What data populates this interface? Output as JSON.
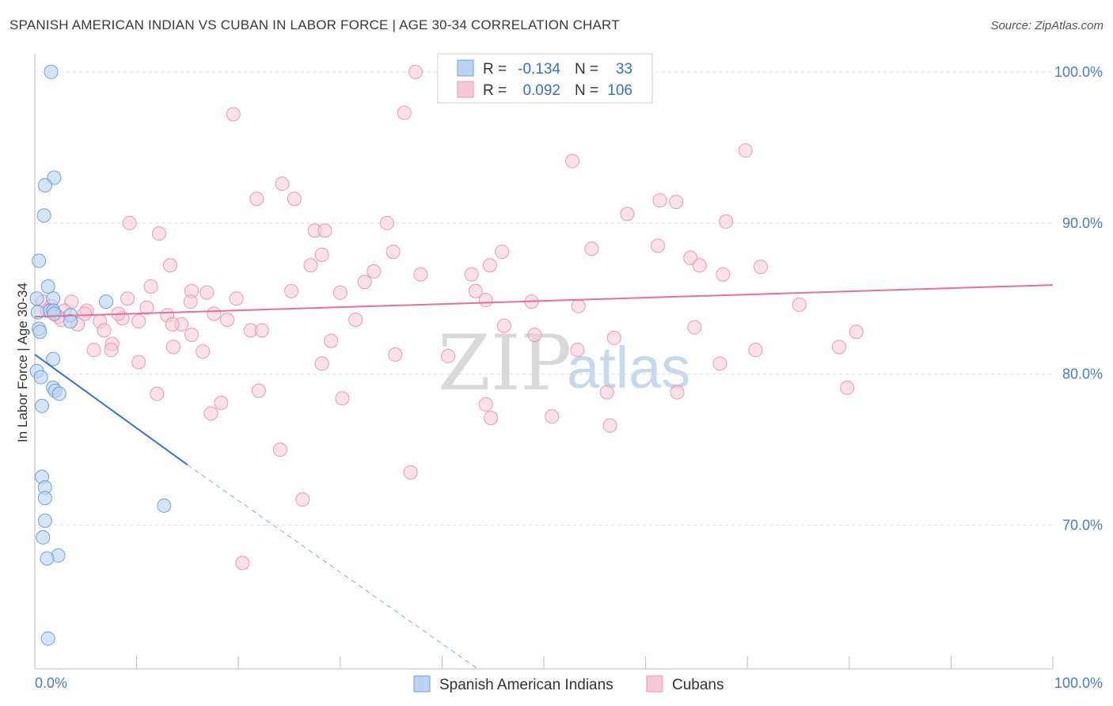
{
  "title": "SPANISH AMERICAN INDIAN VS CUBAN IN LABOR FORCE | AGE 30-34 CORRELATION CHART",
  "source": "Source: ZipAtlas.com",
  "watermark": {
    "zip": "ZIP",
    "atlas": "atlas"
  },
  "colors": {
    "blue_fill": "#b9d3f3",
    "blue_stroke": "#6fa0df",
    "blue_line": "#2f74d6",
    "pink_fill": "#f9c8d6",
    "pink_stroke": "#e898b0",
    "pink_line": "#e4709a",
    "tick_text": "#4a7cc4",
    "grid": "#dddddd"
  },
  "legend": {
    "rows": [
      {
        "r_label": "R =",
        "r_value": "-0.134",
        "n_label": "N =",
        "n_value": "33"
      },
      {
        "r_label": "R =",
        "r_value": "0.092",
        "n_label": "N =",
        "n_value": "106"
      }
    ]
  },
  "bottom_legend": [
    "Spanish American Indians",
    "Cubans"
  ],
  "chart_data": {
    "type": "scatter",
    "title": "SPANISH AMERICAN INDIAN VS CUBAN IN LABOR FORCE | AGE 30-34 CORRELATION CHART",
    "xlabel": "",
    "ylabel": "In Labor Force | Age 30-34",
    "xlim": [
      0,
      100
    ],
    "ylim": [
      60.5,
      101.2
    ],
    "x_tick_labels": [
      "0.0%",
      "100.0%"
    ],
    "y_ticks": [
      70,
      80,
      90,
      100
    ],
    "y_tick_labels": [
      "70.0%",
      "80.0%",
      "90.0%",
      "100.0%"
    ],
    "grid": true,
    "series": [
      {
        "name": "Spanish American Indians",
        "r": -0.134,
        "n": 33,
        "trend": {
          "x0": 0,
          "y0": 81.3,
          "x1": 15,
          "y1": 74.0,
          "dash_to_x": 43.5,
          "dash_to_y": 60.5
        },
        "points": [
          [
            1.6,
            100.0
          ],
          [
            1.9,
            93.0
          ],
          [
            1.0,
            92.5
          ],
          [
            0.9,
            90.5
          ],
          [
            0.4,
            87.5
          ],
          [
            1.3,
            85.8
          ],
          [
            0.2,
            85.0
          ],
          [
            1.8,
            85.0
          ],
          [
            7.0,
            84.8
          ],
          [
            0.3,
            84.1
          ],
          [
            1.5,
            84.2
          ],
          [
            1.8,
            84.2
          ],
          [
            1.9,
            84.0
          ],
          [
            3.5,
            83.9
          ],
          [
            3.5,
            83.5
          ],
          [
            0.4,
            83.0
          ],
          [
            0.5,
            82.8
          ],
          [
            1.8,
            81.0
          ],
          [
            0.2,
            80.2
          ],
          [
            0.6,
            79.8
          ],
          [
            1.8,
            79.1
          ],
          [
            2.0,
            78.9
          ],
          [
            2.4,
            78.7
          ],
          [
            0.7,
            77.9
          ],
          [
            0.7,
            73.2
          ],
          [
            1.0,
            72.5
          ],
          [
            1.0,
            71.8
          ],
          [
            12.7,
            71.3
          ],
          [
            1.0,
            70.3
          ],
          [
            0.8,
            69.2
          ],
          [
            2.3,
            68.0
          ],
          [
            1.2,
            67.8
          ],
          [
            1.3,
            62.5
          ]
        ]
      },
      {
        "name": "Cubans",
        "r": 0.092,
        "n": 106,
        "trend": {
          "x0": 0,
          "y0": 83.8,
          "x1": 100,
          "y1": 85.9
        },
        "points": [
          [
            37.4,
            100.0
          ],
          [
            19.5,
            97.2
          ],
          [
            36.3,
            97.3
          ],
          [
            52.8,
            94.1
          ],
          [
            69.8,
            94.8
          ],
          [
            24.3,
            92.6
          ],
          [
            21.8,
            91.6
          ],
          [
            25.5,
            91.6
          ],
          [
            61.4,
            91.5
          ],
          [
            63.0,
            91.4
          ],
          [
            58.2,
            90.6
          ],
          [
            9.3,
            90.0
          ],
          [
            34.6,
            90.0
          ],
          [
            67.9,
            90.1
          ],
          [
            12.2,
            89.3
          ],
          [
            27.5,
            89.5
          ],
          [
            28.5,
            89.5
          ],
          [
            35.2,
            88.1
          ],
          [
            45.9,
            88.1
          ],
          [
            54.7,
            88.3
          ],
          [
            61.2,
            88.5
          ],
          [
            13.3,
            87.2
          ],
          [
            27.1,
            87.2
          ],
          [
            28.2,
            87.9
          ],
          [
            44.7,
            87.2
          ],
          [
            64.4,
            87.7
          ],
          [
            65.3,
            87.2
          ],
          [
            71.3,
            87.1
          ],
          [
            33.3,
            86.8
          ],
          [
            37.9,
            86.6
          ],
          [
            42.9,
            86.6
          ],
          [
            67.6,
            86.6
          ],
          [
            32.4,
            86.1
          ],
          [
            15.4,
            85.5
          ],
          [
            11.4,
            85.8
          ],
          [
            16.9,
            85.4
          ],
          [
            25.2,
            85.5
          ],
          [
            30.0,
            85.4
          ],
          [
            43.3,
            85.5
          ],
          [
            44.3,
            84.9
          ],
          [
            9.1,
            85.0
          ],
          [
            19.8,
            85.0
          ],
          [
            48.8,
            84.8
          ],
          [
            53.4,
            84.5
          ],
          [
            75.1,
            84.6
          ],
          [
            0.8,
            84.8
          ],
          [
            3.6,
            84.8
          ],
          [
            1.6,
            84.5
          ],
          [
            2.9,
            84.2
          ],
          [
            5.1,
            84.2
          ],
          [
            11.0,
            84.4
          ],
          [
            17.6,
            84.0
          ],
          [
            13.0,
            83.9
          ],
          [
            2.3,
            83.8
          ],
          [
            2.6,
            83.6
          ],
          [
            4.2,
            83.3
          ],
          [
            6.4,
            83.5
          ],
          [
            8.6,
            83.7
          ],
          [
            10.2,
            83.5
          ],
          [
            14.4,
            83.3
          ],
          [
            18.9,
            83.6
          ],
          [
            21.2,
            82.9
          ],
          [
            22.3,
            82.9
          ],
          [
            31.5,
            83.6
          ],
          [
            46.1,
            83.2
          ],
          [
            64.8,
            83.1
          ],
          [
            6.8,
            82.9
          ],
          [
            15.4,
            82.6
          ],
          [
            49.1,
            82.6
          ],
          [
            56.9,
            82.4
          ],
          [
            80.7,
            82.8
          ],
          [
            29.1,
            82.2
          ],
          [
            7.6,
            82.0
          ],
          [
            13.6,
            81.8
          ],
          [
            16.5,
            81.5
          ],
          [
            5.8,
            81.6
          ],
          [
            7.5,
            81.6
          ],
          [
            35.4,
            81.3
          ],
          [
            40.6,
            81.2
          ],
          [
            53.3,
            81.6
          ],
          [
            70.8,
            81.6
          ],
          [
            79.0,
            81.8
          ],
          [
            10.2,
            80.8
          ],
          [
            28.2,
            80.7
          ],
          [
            67.3,
            80.7
          ],
          [
            22.0,
            78.9
          ],
          [
            12.0,
            78.7
          ],
          [
            30.2,
            78.4
          ],
          [
            56.2,
            78.8
          ],
          [
            63.1,
            78.8
          ],
          [
            79.8,
            79.1
          ],
          [
            18.3,
            78.1
          ],
          [
            44.3,
            78.0
          ],
          [
            17.3,
            77.4
          ],
          [
            44.8,
            77.1
          ],
          [
            50.8,
            77.2
          ],
          [
            56.5,
            76.6
          ],
          [
            24.1,
            75.0
          ],
          [
            36.9,
            73.5
          ],
          [
            26.3,
            71.7
          ],
          [
            20.4,
            67.5
          ],
          [
            8.2,
            84.0
          ],
          [
            1.2,
            84.2
          ],
          [
            4.9,
            84.0
          ],
          [
            15.3,
            84.8
          ],
          [
            13.5,
            83.3
          ]
        ]
      }
    ]
  }
}
